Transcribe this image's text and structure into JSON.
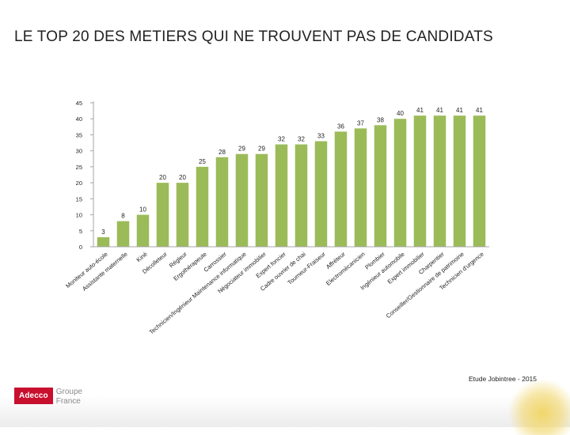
{
  "slide": {
    "title": "LE TOP 20 DES METIERS QUI NE TROUVENT PAS DE CANDIDATS",
    "source": "Etude Jobintree - 2015",
    "logo_brand": "Adecco",
    "logo_line1": "Groupe",
    "logo_line2": "France"
  },
  "colors": {
    "bar": "#9bbb59",
    "axis": "#a6a6a6",
    "text": "#222222"
  },
  "chart_data": {
    "type": "bar",
    "title": "",
    "xlabel": "",
    "ylabel": "",
    "ylim": [
      0,
      45
    ],
    "yticks": [
      0,
      5,
      10,
      15,
      20,
      25,
      30,
      35,
      40,
      45
    ],
    "grid": false,
    "categories": [
      "Moniteur auto-école",
      "Assistante maternelle",
      "Kiné",
      "Décolleteur",
      "Régleur",
      "Ergothérapeute",
      "Carrossier",
      "Technicien/Ingénieur Maintenance informatique",
      "Négociateur immobilier",
      "Expert foncier",
      "Cadre ouvrier de chai",
      "Tourneur-Fraiseur",
      "Affréteur",
      "Electromécanicien",
      "Plombier",
      "Ingénieur automobile",
      "Expert immobilier",
      "Charpentier",
      "Conseiller/Gestionnaire de patrimoine",
      "Technicien d'urgence"
    ],
    "values": [
      3,
      8,
      10,
      20,
      20,
      25,
      28,
      29,
      29,
      32,
      32,
      33,
      36,
      37,
      38,
      40,
      41,
      41,
      41,
      41
    ]
  }
}
